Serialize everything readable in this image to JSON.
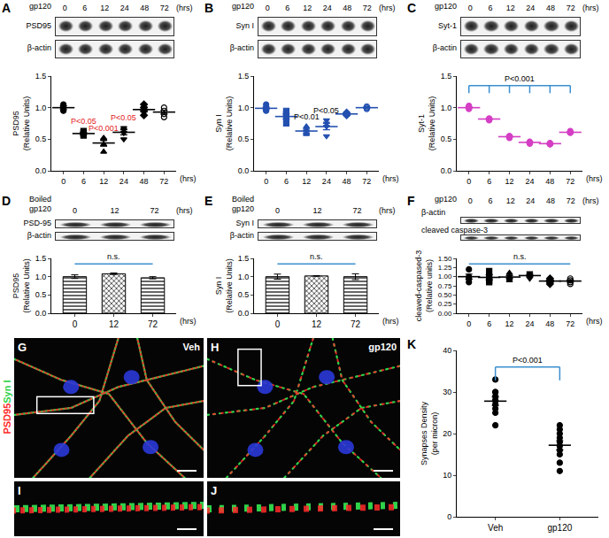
{
  "chart_data": [
    {
      "label": "A",
      "type": "scatter",
      "color": "#000000",
      "blot": {
        "treatment": [
          "gp120"
        ],
        "lanes": [
          "0",
          "6",
          "12",
          "24",
          "48",
          "72"
        ],
        "unit": "(hrs)",
        "rows": [
          "PSD95",
          "β-actin"
        ]
      },
      "ylabel": [
        "PSD95",
        "(Relative Units)"
      ],
      "unit": "(hrs)",
      "ylim": [
        0,
        1.5
      ],
      "yticks": [
        {
          "value": 0,
          "label": "0.0"
        },
        {
          "value": 0.5,
          "label": "0.5"
        },
        {
          "value": 1,
          "label": "1.0"
        },
        {
          "value": 1.5,
          "label": "1.5"
        }
      ],
      "groups": [
        {
          "category": "0",
          "marker": "circle",
          "values": [
            1.0,
            1.05,
            0.95,
            1.0
          ],
          "mean": 1.0,
          "sem": 0.03
        },
        {
          "category": "6",
          "marker": "square",
          "values": [
            0.6,
            0.58,
            0.63,
            0.56
          ],
          "mean": 0.59,
          "sem": 0.02
        },
        {
          "category": "12",
          "marker": "triangle-up",
          "values": [
            0.3,
            0.42,
            0.52,
            0.5
          ],
          "mean": 0.44,
          "sem": 0.05
        },
        {
          "category": "24",
          "marker": "triangle-down",
          "values": [
            0.5,
            0.6,
            0.68,
            0.65
          ],
          "mean": 0.61,
          "sem": 0.04
        },
        {
          "category": "48",
          "marker": "diamond",
          "values": [
            0.95,
            1.0,
            0.88,
            1.05
          ],
          "mean": 0.97,
          "sem": 0.04
        },
        {
          "category": "72",
          "marker": "circle-open",
          "values": [
            0.85,
            0.95,
            1.0,
            0.9
          ],
          "mean": 0.93,
          "sem": 0.03
        }
      ],
      "marks": [
        {
          "text": "P<0.05",
          "at": "6",
          "color": "#e3211c"
        },
        {
          "text": "P<0.001",
          "at": "12",
          "color": "#e3211c"
        },
        {
          "text": "P<0.05",
          "at": "24",
          "color": "#e3211c"
        }
      ]
    },
    {
      "label": "B",
      "type": "scatter",
      "color": "#2350b0",
      "blot": {
        "treatment": [
          "gp120"
        ],
        "lanes": [
          "0",
          "6",
          "12",
          "24",
          "48",
          "72"
        ],
        "unit": "(hrs)",
        "rows": [
          "Syn I",
          "β-actin"
        ]
      },
      "ylabel": [
        "Syn I",
        "(Relative Units)"
      ],
      "unit": "(hrs)",
      "ylim": [
        0,
        1.5
      ],
      "yticks": [
        {
          "value": 0,
          "label": "0.0"
        },
        {
          "value": 0.5,
          "label": "0.5"
        },
        {
          "value": 1,
          "label": "1.0"
        },
        {
          "value": 1.5,
          "label": "1.5"
        }
      ],
      "groups": [
        {
          "category": "0",
          "marker": "circle",
          "values": [
            1.0,
            0.98,
            0.95,
            1.05
          ],
          "mean": 0.99,
          "sem": 0.02
        },
        {
          "category": "6",
          "marker": "square",
          "values": [
            0.9,
            0.85,
            0.75,
            0.95
          ],
          "mean": 0.86,
          "sem": 0.04
        },
        {
          "category": "12",
          "marker": "triangle-up",
          "values": [
            0.6,
            0.65,
            0.7,
            0.58
          ],
          "mean": 0.63,
          "sem": 0.03
        },
        {
          "category": "24",
          "marker": "triangle-down",
          "values": [
            0.55,
            0.75,
            0.8,
            0.7
          ],
          "mean": 0.7,
          "sem": 0.05
        },
        {
          "category": "48",
          "marker": "diamond",
          "values": [
            0.9,
            0.88,
            0.92,
            0.9
          ],
          "mean": 0.9,
          "sem": 0.01
        },
        {
          "category": "72",
          "marker": "circle-open",
          "values": [
            1.0,
            1.0,
            0.98,
            1.02
          ],
          "mean": 1.0,
          "sem": 0.01
        }
      ],
      "marks": [
        {
          "text": "P<0.01",
          "at": "12",
          "color": "#000000"
        },
        {
          "text": "P<0.05",
          "at": "24",
          "color": "#000000"
        }
      ]
    },
    {
      "label": "C",
      "type": "scatter",
      "color": "#d43fc4",
      "blot": {
        "treatment": [
          "gp120"
        ],
        "lanes": [
          "0",
          "6",
          "12",
          "24",
          "48",
          "72"
        ],
        "unit": "(hrs)",
        "rows": [
          "Syt-1",
          "β-actin"
        ]
      },
      "ylabel": [
        "Syt-1",
        "(Relative Units)"
      ],
      "unit": "(hrs)",
      "ylim": [
        0,
        1.5
      ],
      "yticks": [
        {
          "value": 0,
          "label": "0.0"
        },
        {
          "value": 0.5,
          "label": "0.5"
        },
        {
          "value": 1,
          "label": "1.0"
        },
        {
          "value": 1.5,
          "label": "1.5"
        }
      ],
      "groups": [
        {
          "category": "0",
          "marker": "circle",
          "values": [
            1.0,
            1.03,
            0.98
          ],
          "mean": 1.0,
          "sem": 0.015
        },
        {
          "category": "6",
          "marker": "circle",
          "values": [
            0.82,
            0.8,
            0.83
          ],
          "mean": 0.82,
          "sem": 0.01
        },
        {
          "category": "12",
          "marker": "circle",
          "values": [
            0.55,
            0.52,
            0.55
          ],
          "mean": 0.54,
          "sem": 0.01
        },
        {
          "category": "24",
          "marker": "circle",
          "values": [
            0.45,
            0.46,
            0.43
          ],
          "mean": 0.45,
          "sem": 0.01
        },
        {
          "category": "48",
          "marker": "circle",
          "values": [
            0.42,
            0.44,
            0.42
          ],
          "mean": 0.43,
          "sem": 0.01
        },
        {
          "category": "72",
          "marker": "circle",
          "values": [
            0.6,
            0.63,
            0.61
          ],
          "mean": 0.61,
          "sem": 0.01
        }
      ],
      "brackets": [
        {
          "text": "P<0.001",
          "from": "0",
          "to": [
            "6",
            "12",
            "24",
            "48",
            "72"
          ],
          "color": "#3b8fd0",
          "line_style": "bracket"
        }
      ]
    },
    {
      "label": "D",
      "type": "bar",
      "color": "#000000",
      "blot": {
        "treatment": [
          "Boiled",
          "gp120"
        ],
        "lanes": [
          "0",
          "12",
          "72"
        ],
        "unit": "(hrs)",
        "rows": [
          "PSD-95",
          "β-actin"
        ]
      },
      "ylabel": [
        "PSD95",
        "(Relative Units)"
      ],
      "unit": "(hrs)",
      "categories": [
        "0",
        "12",
        "72"
      ],
      "values": [
        1.0,
        1.08,
        0.97
      ],
      "errors": [
        0.05,
        0.02,
        0.03
      ],
      "ylim": [
        0,
        1.5
      ],
      "yticks": [
        {
          "value": 0,
          "label": "0.0"
        },
        {
          "value": 0.5,
          "label": "0.5"
        },
        {
          "value": 1,
          "label": "1.0"
        },
        {
          "value": 1.5,
          "label": "1.5"
        }
      ],
      "brackets": [
        {
          "text": "n.s.",
          "from": "0",
          "to": [
            "72"
          ],
          "color": "#3b8fd0",
          "line_style": "solid"
        }
      ]
    },
    {
      "label": "E",
      "type": "bar",
      "color": "#000000",
      "blot": {
        "treatment": [
          "Boiled",
          "gp120"
        ],
        "lanes": [
          "0",
          "12",
          "72"
        ],
        "unit": "(hrs)",
        "rows": [
          "Syn I",
          "β-actin"
        ]
      },
      "ylabel": [
        "Syn I",
        "(Relative Units)"
      ],
      "unit": "(hrs)",
      "categories": [
        "0",
        "12",
        "72"
      ],
      "values": [
        1.0,
        1.02,
        1.0
      ],
      "errors": [
        0.07,
        0.01,
        0.08
      ],
      "ylim": [
        0,
        1.5
      ],
      "yticks": [
        {
          "value": 0,
          "label": "0.0"
        },
        {
          "value": 0.5,
          "label": "0.5"
        },
        {
          "value": 1,
          "label": "1.0"
        },
        {
          "value": 1.5,
          "label": "1.5"
        }
      ],
      "brackets": [
        {
          "text": "n.s.",
          "from": "0",
          "to": [
            "72"
          ],
          "color": "#3b8fd0",
          "line_style": "solid"
        }
      ]
    },
    {
      "label": "F",
      "type": "scatter",
      "color": "#000000",
      "blot": {
        "treatment": [
          "gp120"
        ],
        "lanes": [
          "0",
          "6",
          "12",
          "24",
          "48",
          "72"
        ],
        "unit": "(hrs)",
        "rows": [
          "β-actin",
          "cleaved caspase-3"
        ]
      },
      "ylabel": [
        "cleaved-caspased-3",
        "(Relative units)"
      ],
      "unit": "(hrs)",
      "ylim": [
        0,
        1.5
      ],
      "yticks": [
        {
          "value": 0,
          "label": "0.00"
        },
        {
          "value": 0.25,
          "label": "0.25"
        },
        {
          "value": 0.5,
          "label": "0.50"
        },
        {
          "value": 0.75,
          "label": "0.75"
        },
        {
          "value": 1,
          "label": "1.00"
        },
        {
          "value": 1.25,
          "label": "1.25"
        },
        {
          "value": 1.5,
          "label": "1.50"
        }
      ],
      "groups": [
        {
          "category": "0",
          "marker": "circle",
          "values": [
            1.0,
            1.2,
            0.95,
            0.85
          ],
          "mean": 1.0,
          "sem": 0.07
        },
        {
          "category": "6",
          "marker": "square",
          "values": [
            1.0,
            1.15,
            0.9,
            0.85
          ],
          "mean": 0.98,
          "sem": 0.07
        },
        {
          "category": "12",
          "marker": "triangle-up",
          "values": [
            1.0,
            0.95,
            1.1,
            0.9
          ],
          "mean": 0.99,
          "sem": 0.04
        },
        {
          "category": "24",
          "marker": "triangle-down",
          "values": [
            1.1,
            0.95,
            1.0,
            1.05
          ],
          "mean": 1.03,
          "sem": 0.03
        },
        {
          "category": "48",
          "marker": "diamond",
          "values": [
            0.95,
            0.85,
            0.9,
            0.8
          ],
          "mean": 0.88,
          "sem": 0.03
        },
        {
          "category": "72",
          "marker": "circle-open",
          "values": [
            0.95,
            0.9,
            0.85,
            0.8
          ],
          "mean": 0.88,
          "sem": 0.03
        }
      ],
      "brackets": [
        {
          "text": "n.s.",
          "from": "0",
          "to": [
            "72"
          ],
          "color": "#3b8fd0",
          "line_style": "solid"
        }
      ]
    },
    {
      "label": "K",
      "type": "scatter",
      "color": "#000000",
      "ylabel": [
        "Synapses Density",
        "(per micron)"
      ],
      "ylim": [
        0,
        40
      ],
      "yticks": [
        0,
        10,
        20,
        30,
        40
      ],
      "groups": [
        {
          "category": "Veh",
          "marker": "circle",
          "values": [
            33,
            30,
            29,
            28,
            27,
            26,
            25,
            22,
            30,
            28
          ],
          "mean": 27.8,
          "sem": 1.0
        },
        {
          "category": "gp120",
          "marker": "circle",
          "values": [
            22,
            21,
            20,
            18,
            17,
            16,
            15,
            13,
            11,
            19
          ],
          "mean": 17.2,
          "sem": 1.1
        }
      ],
      "brackets": [
        {
          "text": "P<0.001",
          "from": "Veh",
          "to": [
            "gp120"
          ],
          "color": "#3b8fd0",
          "line_style": "bracket"
        }
      ]
    }
  ],
  "micrographs": {
    "stains": [
      {
        "text": "PSD95",
        "color": "#ff2a2a"
      },
      {
        "text": "Syn I",
        "color": "#2fd24a"
      }
    ],
    "panels": [
      {
        "label": "G",
        "condition": "Veh"
      },
      {
        "label": "H",
        "condition": "gp120"
      },
      {
        "label": "I"
      },
      {
        "label": "J"
      }
    ]
  }
}
